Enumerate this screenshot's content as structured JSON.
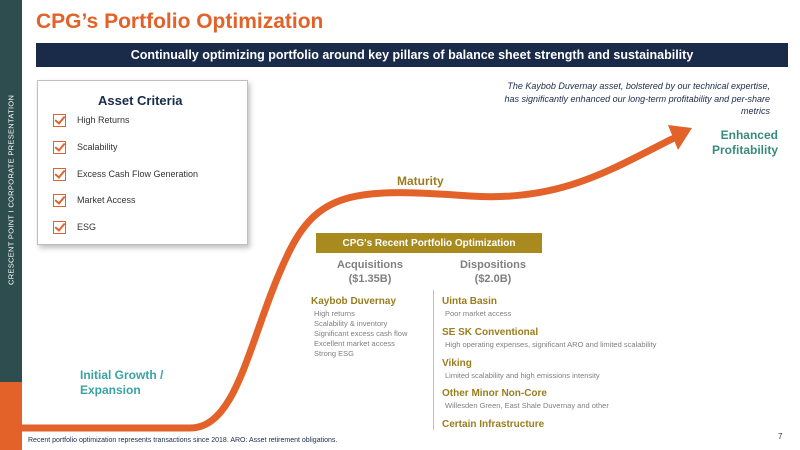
{
  "sidebar": {
    "label": "CRESCENT POINT   I   CORPORATE PRESENTATION"
  },
  "title": "CPG’s Portfolio Optimization",
  "banner": "Continually optimizing portfolio around key pillars of balance sheet strength and sustainability",
  "criteria": {
    "title": "Asset Criteria",
    "items": [
      "High Returns",
      "Scalability",
      "Excess Cash Flow Generation",
      "Market Access",
      "ESG"
    ]
  },
  "note": "The Kaybob Duvernay asset, bolstered by our technical expertise, has significantly enhanced our long-term profitability and per-share metrics",
  "stages": {
    "initial": "Initial Growth / Expansion",
    "maturity": "Maturity",
    "enhanced": "Enhanced Profitability"
  },
  "optimization": {
    "banner": "CPG's Recent Portfolio Optimization",
    "acquisitions": {
      "heading": "Acquisitions",
      "amount": "($1.35B)"
    },
    "dispositions": {
      "heading": "Dispositions",
      "amount": "($2.0B)"
    },
    "acq_items": [
      {
        "title": "Kaybob Duvernay",
        "details": [
          "High returns",
          "Scalability & inventory",
          "Significant excess cash flow",
          "Excellent market access",
          "Strong ESG"
        ]
      }
    ],
    "disp_items": [
      {
        "title": "Uinta Basin",
        "detail": "Poor market access"
      },
      {
        "title": "SE SK Conventional",
        "detail": "High operating expenses, significant ARO and limited scalability"
      },
      {
        "title": "Viking",
        "detail": "Limited scalability and high emissions intensity"
      },
      {
        "title": "Other Minor Non-Core",
        "detail": "Willesden Green, East Shale Duvernay and other"
      },
      {
        "title": "Certain Infrastructure",
        "detail": ""
      }
    ]
  },
  "footnote": "Recent portfolio optimization represents transactions since 2018. ARO: Asset retirement obligations.",
  "page_number": "7",
  "colors": {
    "accent": "#e2622a",
    "navy": "#1a2b4a",
    "gold": "#a88a1f",
    "teal": "#3a8a80",
    "sidebar": "#2d4d4f"
  }
}
